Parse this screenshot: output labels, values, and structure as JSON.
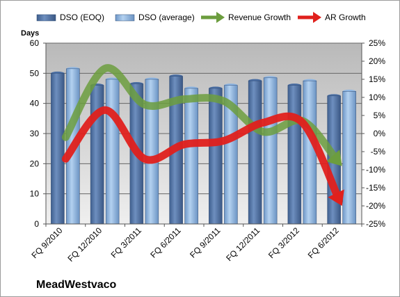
{
  "chart_data": {
    "type": "bar",
    "categories": [
      "FQ 9/2010",
      "FQ 12/2010",
      "FQ 3/2011",
      "FQ 6/2011",
      "FQ 9/2011",
      "FQ 12/2011",
      "FQ 3/2012",
      "FQ 6/2012"
    ],
    "series": [
      {
        "name": "DSO (EOQ)",
        "kind": "bar",
        "axis": "left",
        "color": "#4a6ea3",
        "values": [
          50,
          46,
          46.5,
          49,
          45,
          47.5,
          46,
          42.5
        ]
      },
      {
        "name": "DSO (average)",
        "kind": "bar",
        "axis": "left",
        "color": "#8fb6e2",
        "values": [
          51.5,
          48,
          48,
          45,
          46,
          48.5,
          47.5,
          44
        ]
      },
      {
        "name": "Revenue Growth",
        "kind": "arrow-line",
        "axis": "right",
        "color": "#6c9d3e",
        "values": [
          -1,
          18,
          8,
          9.5,
          9,
          0.5,
          3.5,
          -9
        ]
      },
      {
        "name": "AR Growth",
        "kind": "arrow-line",
        "axis": "right",
        "color": "#e0201c",
        "values": [
          -7,
          6.5,
          -7,
          -3,
          -2,
          3,
          3,
          -20
        ]
      }
    ],
    "ylabel": "Days",
    "ylim": [
      0,
      60
    ],
    "yticks": [
      "0",
      "10",
      "20",
      "30",
      "40",
      "50",
      "60"
    ],
    "y2lim": [
      -25,
      25
    ],
    "y2ticks": [
      "-25%",
      "-20%",
      "-15%",
      "-10%",
      "-5%",
      "0%",
      "5%",
      "10%",
      "15%",
      "20%",
      "25%"
    ],
    "grid": true,
    "legend_position": "top",
    "company": "MeadWestvaco"
  }
}
